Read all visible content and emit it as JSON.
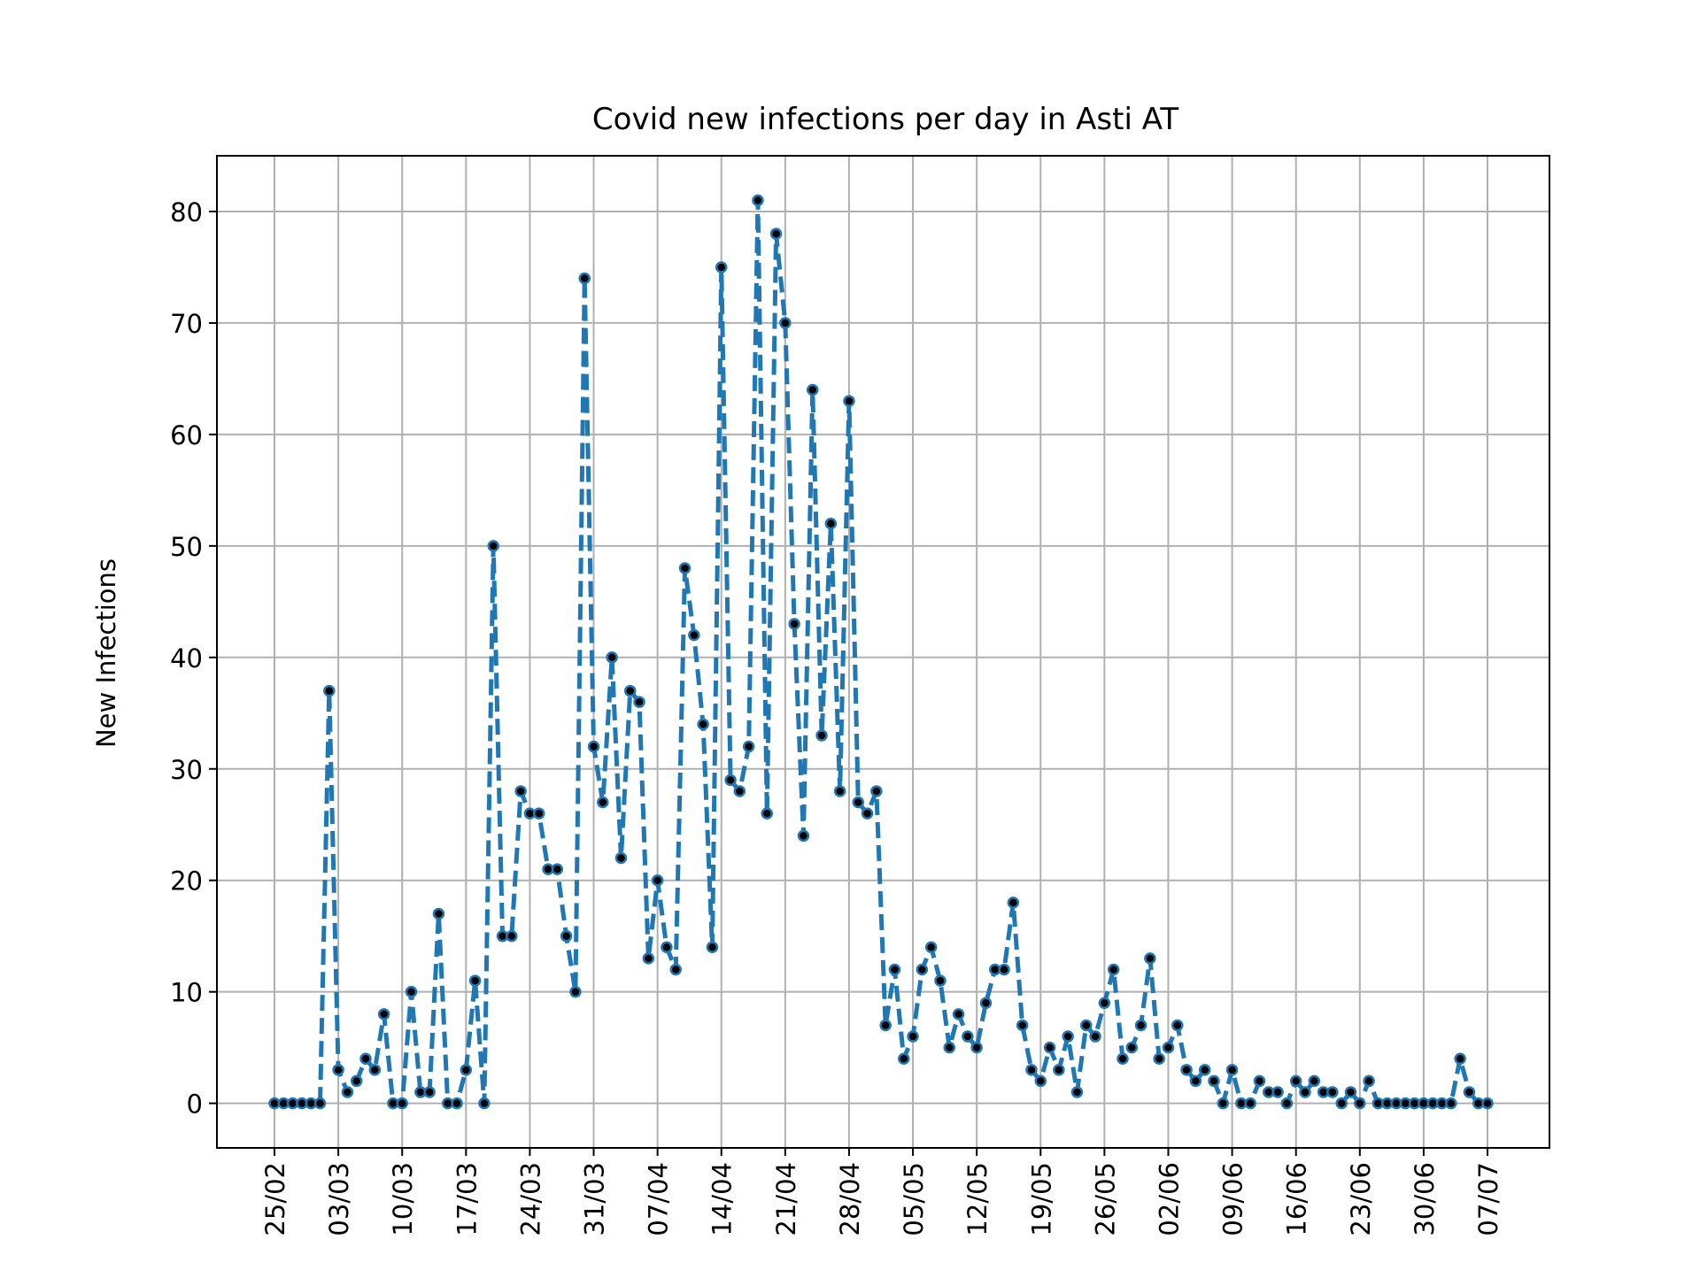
{
  "chart_data": {
    "type": "line",
    "title": "Covid new infections per day in Asti AT",
    "xlabel": "",
    "ylabel": "New Infections",
    "ylim": [
      -4,
      85
    ],
    "yticks": [
      0,
      10,
      20,
      30,
      40,
      50,
      60,
      70,
      80
    ],
    "xtick_labels": [
      "25/02",
      "03/03",
      "10/03",
      "17/03",
      "24/03",
      "31/03",
      "07/04",
      "14/04",
      "21/04",
      "28/04",
      "05/05",
      "12/05",
      "19/05",
      "26/05",
      "02/06",
      "09/06",
      "16/06",
      "23/06",
      "30/06",
      "07/07"
    ],
    "xtick_step_days": 7,
    "grid": true,
    "line_style": "dashed",
    "marker": "dot",
    "line_color": "#1f77b4",
    "marker_color": "#000000",
    "series": [
      {
        "values": [
          0,
          0,
          0,
          0,
          0,
          0,
          37,
          3,
          1,
          2,
          4,
          3,
          8,
          0,
          0,
          10,
          1,
          1,
          17,
          0,
          0,
          3,
          11,
          0,
          50,
          15,
          15,
          28,
          26,
          26,
          21,
          21,
          15,
          10,
          74,
          32,
          27,
          40,
          22,
          37,
          36,
          13,
          20,
          14,
          12,
          48,
          42,
          34,
          14,
          75,
          29,
          28,
          32,
          81,
          26,
          78,
          70,
          43,
          24,
          64,
          33,
          52,
          28,
          63,
          27,
          26,
          28,
          7,
          12,
          4,
          6,
          12,
          14,
          11,
          5,
          8,
          6,
          5,
          9,
          12,
          12,
          18,
          7,
          3,
          2,
          5,
          3,
          6,
          1,
          7,
          6,
          9,
          12,
          4,
          5,
          7,
          13,
          4,
          5,
          7,
          3,
          2,
          3,
          2,
          0,
          3,
          0,
          0,
          2,
          1,
          1,
          0,
          2,
          1,
          2,
          1,
          1,
          0,
          1,
          0,
          2,
          0,
          0,
          0,
          0,
          0,
          0,
          0,
          0,
          0,
          4,
          1,
          0,
          0
        ]
      }
    ]
  }
}
